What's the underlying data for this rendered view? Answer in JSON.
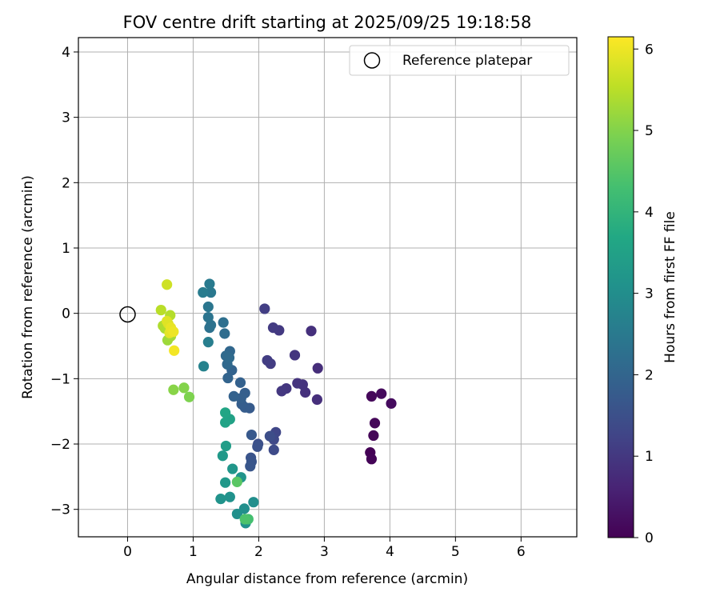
{
  "chart_data": {
    "type": "scatter",
    "title": "FOV centre drift starting at 2025/09/25 19:18:58",
    "xlabel": "Angular distance from reference (arcmin)",
    "ylabel": "Rotation from reference (arcmin)",
    "xlim": [
      -0.75,
      6.85
    ],
    "ylim": [
      -3.42,
      4.22
    ],
    "xticks": [
      0,
      1,
      2,
      3,
      4,
      5,
      6
    ],
    "yticks": [
      -3,
      -2,
      -1,
      0,
      1,
      2,
      3,
      4
    ],
    "grid": true,
    "legend": {
      "position": "top-right",
      "entries": [
        "Reference platepar"
      ]
    },
    "reference_point": {
      "x": 0,
      "y": 0
    },
    "colorbar": {
      "label": "Hours from first FF file",
      "range": [
        0,
        6.15
      ],
      "ticks": [
        0,
        1,
        2,
        3,
        4,
        5,
        6
      ],
      "colormap": "viridis"
    },
    "points": [
      {
        "x": 3.7,
        "y": -2.13,
        "t": 0.02
      },
      {
        "x": 3.72,
        "y": -2.23,
        "t": 0.05
      },
      {
        "x": 3.75,
        "y": -1.87,
        "t": 0.08
      },
      {
        "x": 3.77,
        "y": -1.68,
        "t": 0.1
      },
      {
        "x": 3.72,
        "y": -1.27,
        "t": 0.12
      },
      {
        "x": 3.87,
        "y": -1.23,
        "t": 0.15
      },
      {
        "x": 4.02,
        "y": -1.38,
        "t": 0.18
      },
      {
        "x": 2.9,
        "y": -0.84,
        "t": 0.8
      },
      {
        "x": 2.89,
        "y": -1.32,
        "t": 0.82
      },
      {
        "x": 2.8,
        "y": -0.27,
        "t": 0.85
      },
      {
        "x": 2.71,
        "y": -1.21,
        "t": 0.87
      },
      {
        "x": 2.67,
        "y": -1.09,
        "t": 0.9
      },
      {
        "x": 2.59,
        "y": -1.07,
        "t": 0.92
      },
      {
        "x": 2.55,
        "y": -0.64,
        "t": 0.95
      },
      {
        "x": 2.42,
        "y": -1.15,
        "t": 0.97
      },
      {
        "x": 2.35,
        "y": -1.19,
        "t": 1.0
      },
      {
        "x": 2.31,
        "y": -0.26,
        "t": 1.02
      },
      {
        "x": 2.22,
        "y": -0.22,
        "t": 1.05
      },
      {
        "x": 2.18,
        "y": -0.77,
        "t": 1.07
      },
      {
        "x": 2.13,
        "y": -0.72,
        "t": 1.1
      },
      {
        "x": 2.09,
        "y": 0.07,
        "t": 1.12
      },
      {
        "x": 2.26,
        "y": -1.82,
        "t": 1.3
      },
      {
        "x": 2.23,
        "y": -1.93,
        "t": 1.35
      },
      {
        "x": 2.23,
        "y": -2.09,
        "t": 1.4
      },
      {
        "x": 2.17,
        "y": -1.88,
        "t": 1.45
      },
      {
        "x": 1.99,
        "y": -2.0,
        "t": 1.5
      },
      {
        "x": 1.98,
        "y": -2.04,
        "t": 1.55
      },
      {
        "x": 1.88,
        "y": -2.21,
        "t": 1.6
      },
      {
        "x": 1.89,
        "y": -2.27,
        "t": 1.62
      },
      {
        "x": 1.87,
        "y": -2.34,
        "t": 1.65
      },
      {
        "x": 1.89,
        "y": -1.86,
        "t": 1.7
      },
      {
        "x": 1.86,
        "y": -1.45,
        "t": 1.75
      },
      {
        "x": 1.79,
        "y": -1.44,
        "t": 1.8
      },
      {
        "x": 1.74,
        "y": -1.39,
        "t": 1.82
      },
      {
        "x": 1.79,
        "y": -1.22,
        "t": 1.85
      },
      {
        "x": 1.73,
        "y": -1.3,
        "t": 1.87
      },
      {
        "x": 1.72,
        "y": -1.06,
        "t": 1.9
      },
      {
        "x": 1.62,
        "y": -1.27,
        "t": 1.92
      },
      {
        "x": 1.59,
        "y": -0.87,
        "t": 1.95
      },
      {
        "x": 1.53,
        "y": -0.99,
        "t": 1.98
      },
      {
        "x": 1.56,
        "y": -0.58,
        "t": 2.05
      },
      {
        "x": 1.52,
        "y": -0.78,
        "t": 2.1
      },
      {
        "x": 1.5,
        "y": -0.65,
        "t": 2.12
      },
      {
        "x": 1.55,
        "y": -0.68,
        "t": 2.15
      },
      {
        "x": 1.48,
        "y": -0.31,
        "t": 2.2
      },
      {
        "x": 1.46,
        "y": -0.14,
        "t": 2.25
      },
      {
        "x": 1.25,
        "y": -0.22,
        "t": 2.3
      },
      {
        "x": 1.27,
        "y": -0.18,
        "t": 2.32
      },
      {
        "x": 1.23,
        "y": -0.06,
        "t": 2.35
      },
      {
        "x": 1.23,
        "y": 0.1,
        "t": 2.4
      },
      {
        "x": 1.27,
        "y": 0.32,
        "t": 2.45
      },
      {
        "x": 1.25,
        "y": 0.45,
        "t": 2.5
      },
      {
        "x": 1.15,
        "y": 0.32,
        "t": 2.55
      },
      {
        "x": 1.23,
        "y": -0.44,
        "t": 2.6
      },
      {
        "x": 1.16,
        "y": -0.81,
        "t": 2.7
      },
      {
        "x": 1.92,
        "y": -2.89,
        "t": 3.0
      },
      {
        "x": 1.78,
        "y": -2.99,
        "t": 3.02
      },
      {
        "x": 1.67,
        "y": -3.07,
        "t": 3.05
      },
      {
        "x": 1.8,
        "y": -3.21,
        "t": 3.07
      },
      {
        "x": 1.56,
        "y": -2.81,
        "t": 3.1
      },
      {
        "x": 1.42,
        "y": -2.84,
        "t": 3.12
      },
      {
        "x": 1.73,
        "y": -2.51,
        "t": 3.15
      },
      {
        "x": 1.6,
        "y": -2.38,
        "t": 3.2
      },
      {
        "x": 1.49,
        "y": -2.59,
        "t": 3.25
      },
      {
        "x": 1.45,
        "y": -2.18,
        "t": 3.3
      },
      {
        "x": 1.5,
        "y": -2.03,
        "t": 3.4
      },
      {
        "x": 1.56,
        "y": -1.62,
        "t": 3.5
      },
      {
        "x": 1.49,
        "y": -1.67,
        "t": 3.55
      },
      {
        "x": 1.49,
        "y": -1.52,
        "t": 3.6
      },
      {
        "x": 1.84,
        "y": -3.15,
        "t": 4.3
      },
      {
        "x": 1.79,
        "y": -3.15,
        "t": 4.4
      },
      {
        "x": 1.67,
        "y": -2.58,
        "t": 4.55
      },
      {
        "x": 0.94,
        "y": -1.28,
        "t": 4.95
      },
      {
        "x": 0.86,
        "y": -1.14,
        "t": 5.0
      },
      {
        "x": 0.7,
        "y": -1.17,
        "t": 5.05
      },
      {
        "x": 0.61,
        "y": -0.41,
        "t": 5.25
      },
      {
        "x": 0.66,
        "y": -0.35,
        "t": 5.3
      },
      {
        "x": 0.57,
        "y": -0.23,
        "t": 5.35
      },
      {
        "x": 0.54,
        "y": -0.19,
        "t": 5.4
      },
      {
        "x": 0.65,
        "y": -0.03,
        "t": 5.45
      },
      {
        "x": 0.51,
        "y": 0.05,
        "t": 5.5
      },
      {
        "x": 0.6,
        "y": 0.44,
        "t": 5.7
      },
      {
        "x": 0.62,
        "y": -0.16,
        "t": 5.8
      },
      {
        "x": 0.6,
        "y": -0.12,
        "t": 5.85
      },
      {
        "x": 0.64,
        "y": -0.3,
        "t": 5.9
      },
      {
        "x": 0.66,
        "y": -0.22,
        "t": 5.95
      },
      {
        "x": 0.7,
        "y": -0.28,
        "t": 6.0
      },
      {
        "x": 0.71,
        "y": -0.57,
        "t": 6.05
      }
    ]
  }
}
